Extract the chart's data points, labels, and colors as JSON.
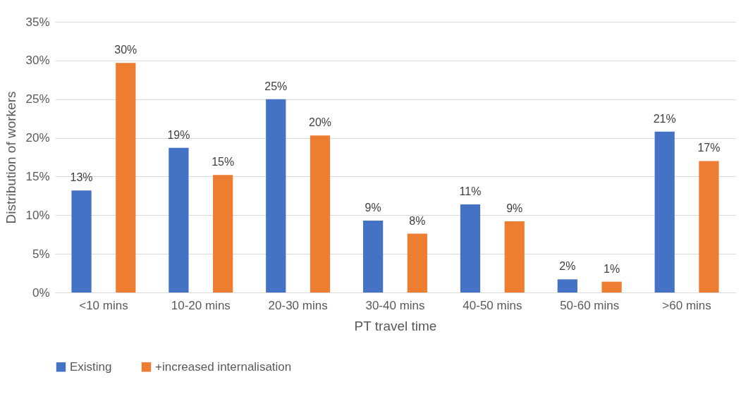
{
  "chart_data": {
    "type": "bar",
    "xlabel": "PT travel time",
    "ylabel": "Distribution of workers",
    "categories": [
      "<10 mins",
      "10-20 mins",
      "20-30 mins",
      "30-40 mins",
      "40-50 mins",
      "50-60 mins",
      ">60 mins"
    ],
    "series": [
      {
        "name": "Existing",
        "color": "#4472c4",
        "values": [
          13.2,
          18.7,
          25.0,
          9.3,
          11.4,
          1.7,
          20.8
        ],
        "value_labels": [
          "13%",
          "19%",
          "25%",
          "9%",
          "11%",
          "2%",
          "21%"
        ]
      },
      {
        "name": "+increased internalisation",
        "color": "#ed7d31",
        "values": [
          29.7,
          15.2,
          20.3,
          7.6,
          9.2,
          1.4,
          17.0
        ],
        "value_labels": [
          "30%",
          "15%",
          "20%",
          "8%",
          "9%",
          "1%",
          "17%"
        ]
      }
    ],
    "ylim": [
      0,
      35
    ],
    "yticks": [
      {
        "value": 0,
        "label": "0%"
      },
      {
        "value": 5,
        "label": "5%"
      },
      {
        "value": 10,
        "label": "10%"
      },
      {
        "value": 15,
        "label": "15%"
      },
      {
        "value": 20,
        "label": "20%"
      },
      {
        "value": 25,
        "label": "25%"
      },
      {
        "value": 30,
        "label": "30%"
      },
      {
        "value": 35,
        "label": "35%"
      }
    ],
    "grid": "y",
    "legend": "bottom"
  }
}
